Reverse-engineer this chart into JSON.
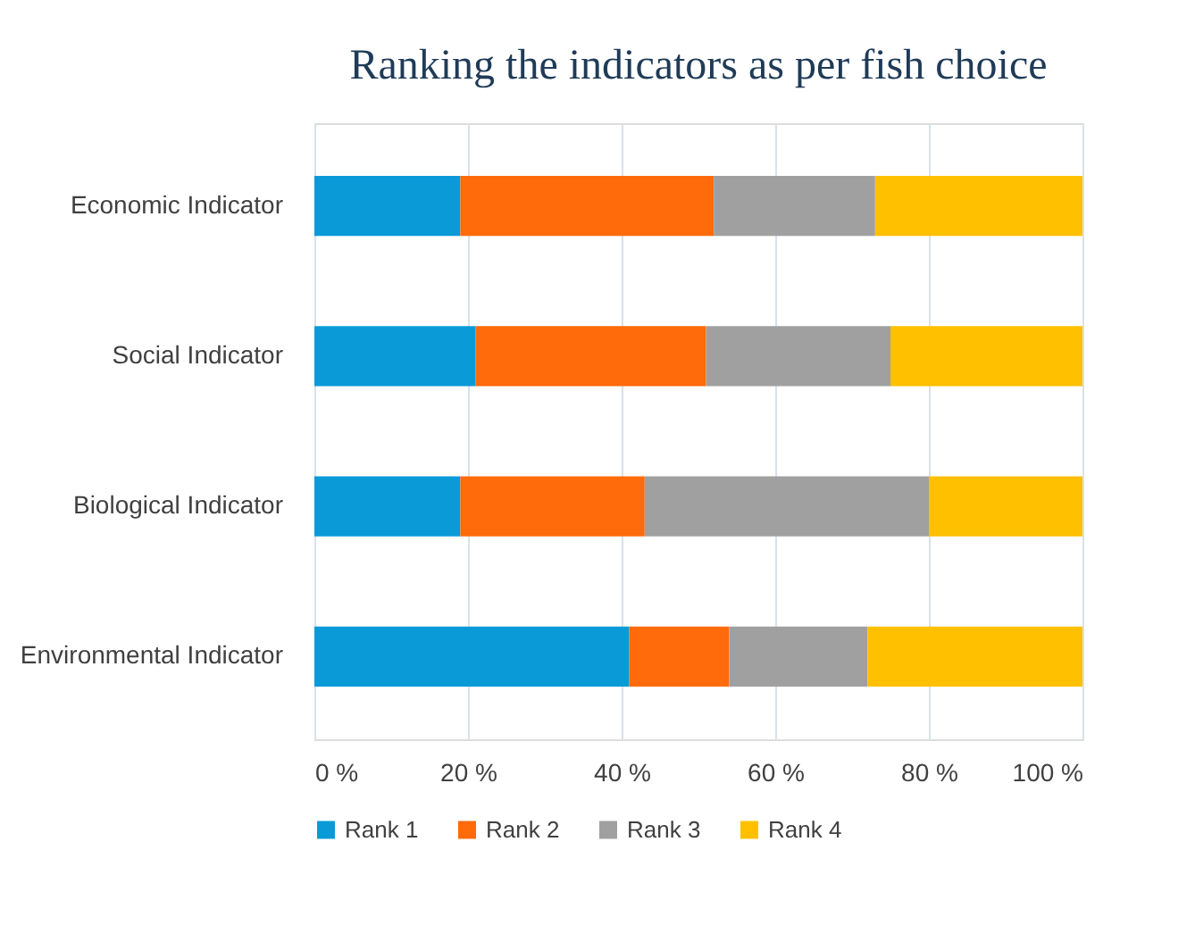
{
  "chart_data": {
    "type": "bar",
    "orientation": "horizontal",
    "stacked": true,
    "title": "Ranking the indicators as per fish choice",
    "categories": [
      "Economic Indicator",
      "Social Indicator",
      "Biological Indicator",
      "Environmental Indicator"
    ],
    "series": [
      {
        "name": "Rank 1",
        "color": "#0a9ad8",
        "values": [
          19,
          21,
          19,
          41
        ]
      },
      {
        "name": "Rank 2",
        "color": "#ff6a0a",
        "values": [
          33,
          30,
          24,
          13
        ]
      },
      {
        "name": "Rank 3",
        "color": "#a0a0a0",
        "values": [
          21,
          24,
          37,
          18
        ]
      },
      {
        "name": "Rank 4",
        "color": "#ffc000",
        "values": [
          27,
          25,
          20,
          28
        ]
      }
    ],
    "xlim": [
      0,
      100
    ],
    "xticks": [
      {
        "value": 0,
        "label": "0 %"
      },
      {
        "value": 20,
        "label": "20 %"
      },
      {
        "value": 40,
        "label": "40 %"
      },
      {
        "value": 60,
        "label": "60 %"
      },
      {
        "value": 80,
        "label": "80 %"
      },
      {
        "value": 100,
        "label": "100 %"
      }
    ],
    "grid": "x",
    "legend": "bottom"
  }
}
